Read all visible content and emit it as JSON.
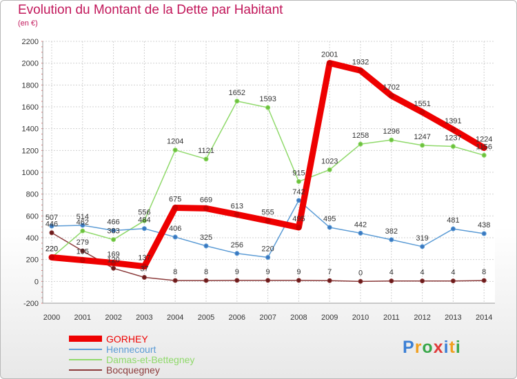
{
  "header": {
    "title": "Evolution du Montant de la Dette par Habitant",
    "subtitle": "(en €)"
  },
  "logo": {
    "letters": [
      "P",
      "r",
      "o",
      "x",
      "i",
      "t",
      "i"
    ],
    "colors": [
      "#3a7fd5",
      "#f0a020",
      "#3aa84a",
      "#e03a3a",
      "#3a7fd5",
      "#f0a020",
      "#3aa84a"
    ]
  },
  "chart_data": {
    "type": "line",
    "x": [
      "2000",
      "2001",
      "2002",
      "2003",
      "2004",
      "2005",
      "2006",
      "2007",
      "2008",
      "2009",
      "2010",
      "2011",
      "2012",
      "2013",
      "2014"
    ],
    "ylim": [
      -200,
      2200
    ],
    "yticks": [
      -200,
      0,
      200,
      400,
      600,
      800,
      1000,
      1200,
      1400,
      1600,
      1800,
      2000,
      2200
    ],
    "grid": true,
    "legend_position": "bottom-left",
    "series": [
      {
        "name": "GORHEY",
        "color": "#ee0000",
        "marker": "#cc0000",
        "values": [
          220,
          195,
          169,
          137,
          675,
          669,
          613,
          555,
          495,
          2001,
          1932,
          1702,
          1551,
          1391,
          1224
        ],
        "labels": [
          "220",
          "195",
          "169",
          "137",
          "675",
          "669",
          "613",
          "555",
          "495",
          "2001",
          "1932",
          "1702",
          "1551",
          "1391",
          "1224"
        ]
      },
      {
        "name": "Hennecourt",
        "color": "#5b9bd5",
        "marker": "#3a78c0",
        "values": [
          507,
          514,
          466,
          484,
          406,
          325,
          256,
          220,
          742,
          495,
          442,
          382,
          319,
          481,
          438
        ],
        "labels": [
          "507",
          "514",
          "466",
          "484",
          "406",
          "325",
          "256",
          "220",
          "742",
          "495",
          "442",
          "382",
          "319",
          "481",
          "438"
        ]
      },
      {
        "name": "Damas-et-Bettegney",
        "color": "#8fd96a",
        "marker": "#6cc03c",
        "values": [
          220,
          462,
          383,
          556,
          1204,
          1121,
          1652,
          1593,
          915,
          1023,
          1258,
          1296,
          1247,
          1237,
          1156
        ],
        "labels": [
          "220",
          "462",
          "383",
          "556",
          "1204",
          "1121",
          "1652",
          "1593",
          "915",
          "1023",
          "1258",
          "1296",
          "1247",
          "1237",
          "1156"
        ]
      },
      {
        "name": "Bocquegney",
        "color": "#8b3a3a",
        "marker": "#6b1a1a",
        "values": [
          446,
          279,
          120,
          37,
          8,
          8,
          9,
          9,
          9,
          7,
          0,
          4,
          4,
          4,
          8
        ],
        "labels": [
          "446",
          "279",
          "120",
          "37",
          "8",
          "8",
          "9",
          "9",
          "9",
          "7",
          "0",
          "4",
          "4",
          "4",
          "8"
        ]
      }
    ]
  }
}
